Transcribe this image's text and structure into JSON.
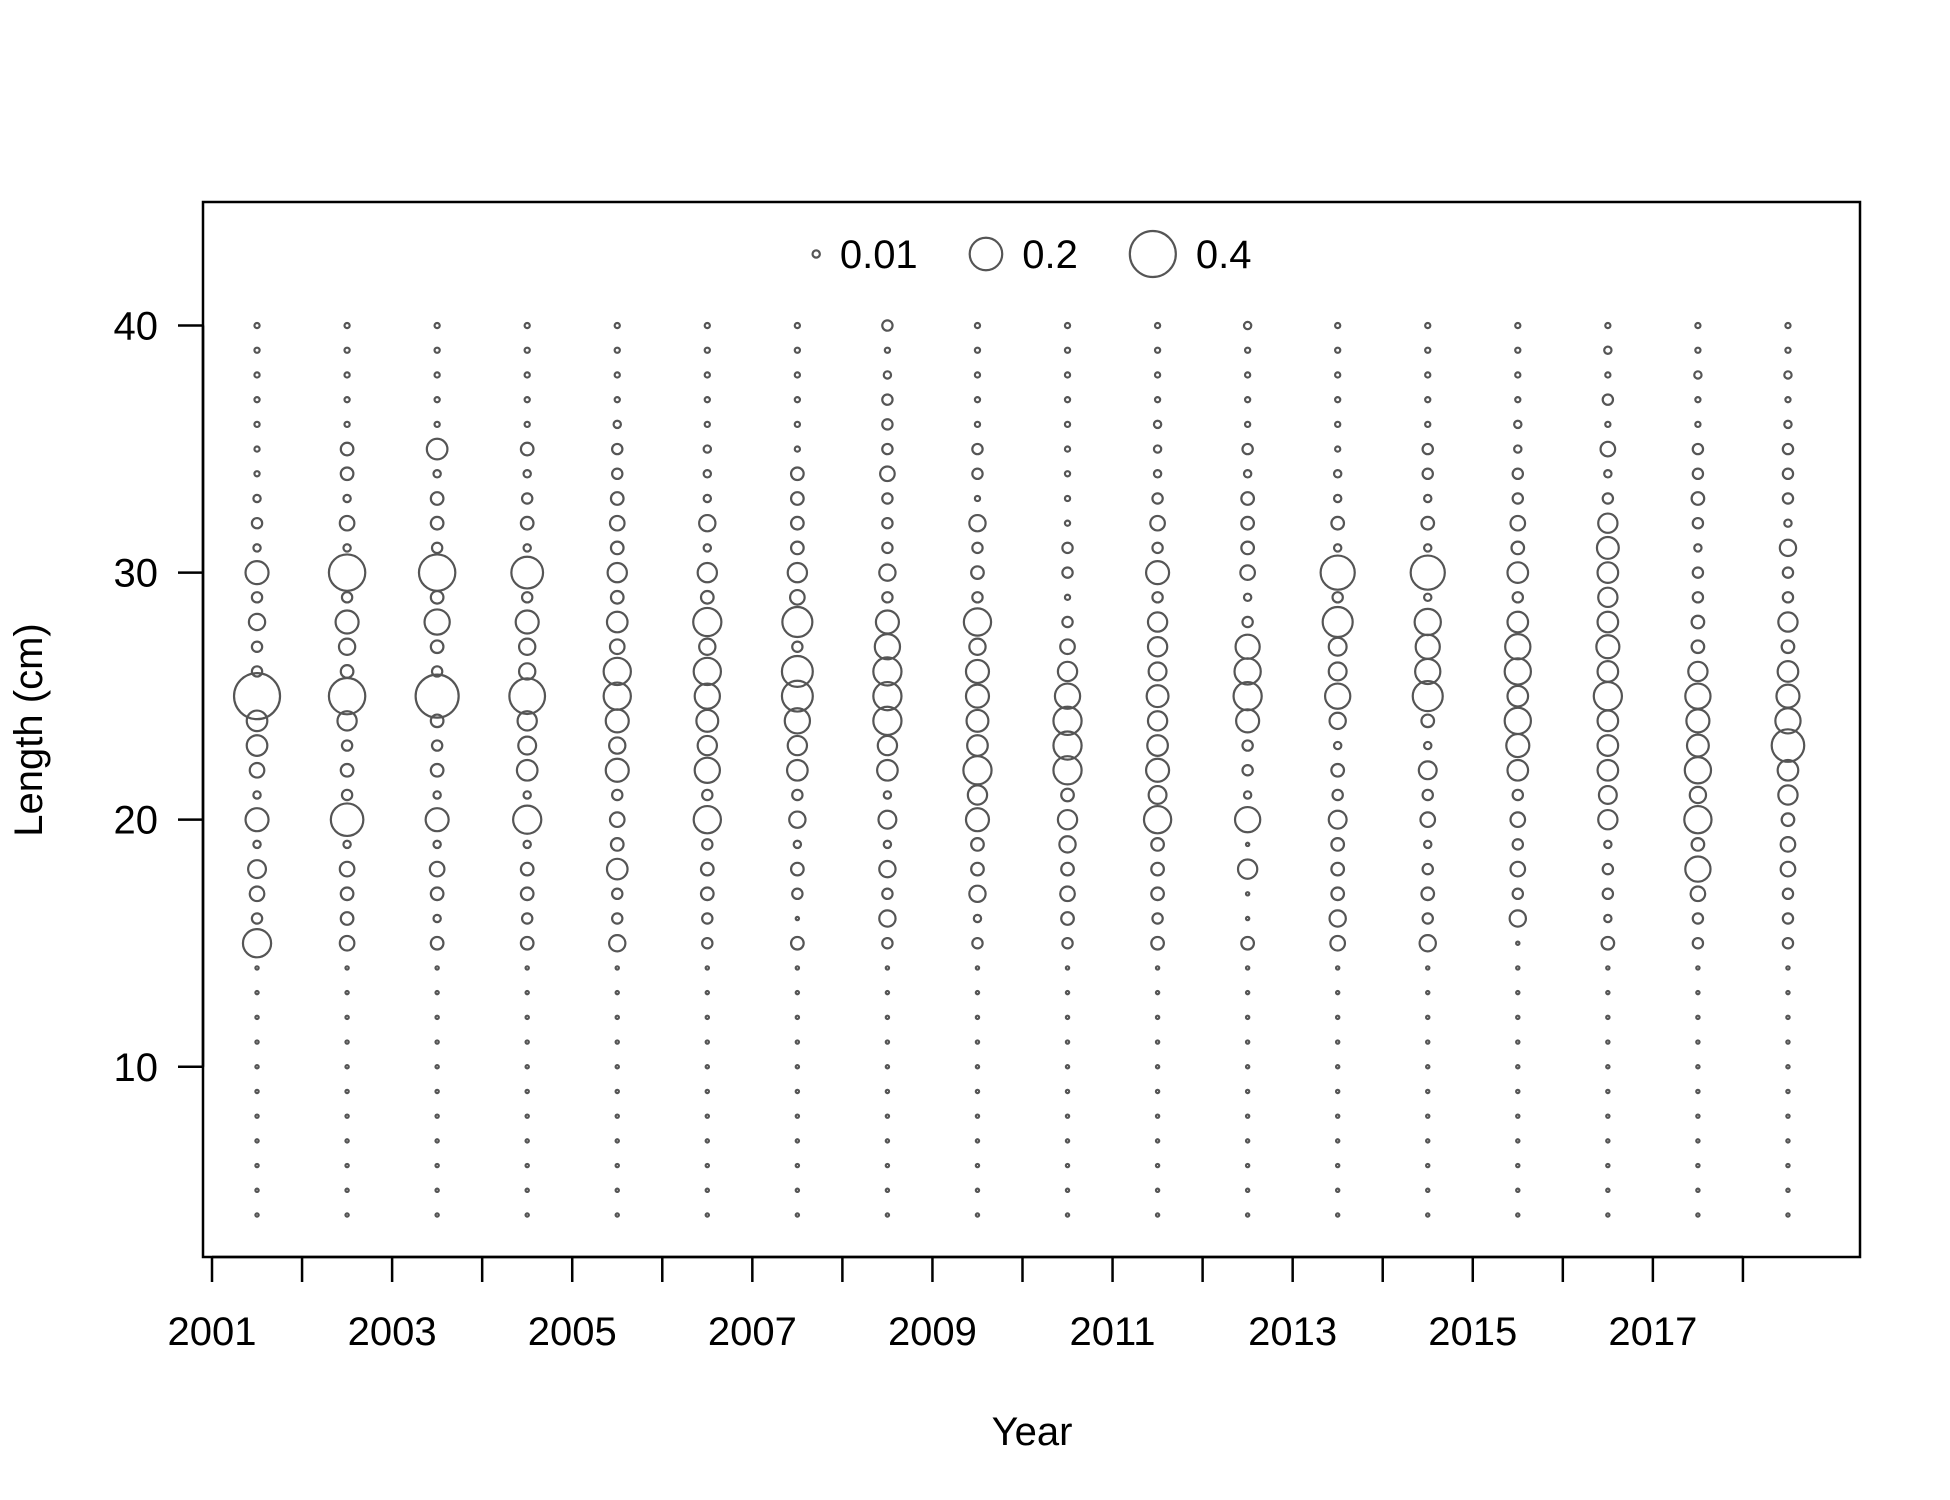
{
  "chart_data": {
    "type": "scatter",
    "subtype": "bubble",
    "title": "",
    "xlabel": "Year",
    "ylabel": "Length (cm)",
    "xlim": [
      2000.9,
      2019.3
    ],
    "ylim": [
      2.3,
      45
    ],
    "grid": false,
    "x_tick_values": [
      2001,
      2002,
      2003,
      2004,
      2005,
      2006,
      2007,
      2008,
      2009,
      2010,
      2011,
      2012,
      2013,
      2014,
      2015,
      2016,
      2017,
      2018
    ],
    "x_tick_labels": [
      "2001",
      "2003",
      "2005",
      "2007",
      "2009",
      "2011",
      "2013",
      "2015",
      "2017"
    ],
    "x_tick_label_values": [
      2001,
      2003,
      2005,
      2007,
      2009,
      2011,
      2013,
      2015,
      2017
    ],
    "y_tick_values": [
      10,
      20,
      30,
      40
    ],
    "y_tick_labels": [
      "10",
      "20",
      "30",
      "40"
    ],
    "legend": {
      "position": "top-center",
      "entries": [
        {
          "label": "0.01",
          "value": 0.01
        },
        {
          "label": "0.2",
          "value": 0.2
        },
        {
          "label": "0.4",
          "value": 0.4
        }
      ]
    },
    "point_color": "#555555",
    "length_bins": [
      4,
      5,
      6,
      7,
      8,
      9,
      10,
      11,
      12,
      13,
      14,
      15,
      16,
      17,
      18,
      19,
      20,
      21,
      22,
      23,
      24,
      25,
      26,
      27,
      28,
      29,
      30,
      31,
      32,
      33,
      34,
      35,
      36,
      37,
      38,
      39,
      40
    ],
    "series": [
      {
        "x": 2001.5,
        "values": [
          0.002,
          0.002,
          0.002,
          0.002,
          0.002,
          0.002,
          0.002,
          0.002,
          0.002,
          0.002,
          0.002,
          0.15,
          0.02,
          0.04,
          0.06,
          0.01,
          0.1,
          0.01,
          0.04,
          0.08,
          0.08,
          0.4,
          0.02,
          0.02,
          0.05,
          0.02,
          0.1,
          0.01,
          0.02,
          0.01,
          0.005,
          0.005,
          0.005,
          0.005,
          0.005,
          0.005,
          0.005
        ]
      },
      {
        "x": 2002.5,
        "values": [
          0.002,
          0.002,
          0.002,
          0.002,
          0.002,
          0.002,
          0.002,
          0.002,
          0.002,
          0.002,
          0.002,
          0.04,
          0.03,
          0.03,
          0.04,
          0.01,
          0.2,
          0.02,
          0.03,
          0.02,
          0.07,
          0.25,
          0.03,
          0.05,
          0.1,
          0.02,
          0.25,
          0.01,
          0.04,
          0.01,
          0.03,
          0.03,
          0.005,
          0.005,
          0.005,
          0.005,
          0.005
        ]
      },
      {
        "x": 2003.5,
        "values": [
          0.002,
          0.002,
          0.002,
          0.002,
          0.002,
          0.002,
          0.002,
          0.002,
          0.002,
          0.002,
          0.002,
          0.03,
          0.01,
          0.03,
          0.04,
          0.01,
          0.1,
          0.01,
          0.03,
          0.02,
          0.03,
          0.35,
          0.02,
          0.03,
          0.12,
          0.03,
          0.25,
          0.02,
          0.03,
          0.03,
          0.01,
          0.08,
          0.005,
          0.005,
          0.005,
          0.005,
          0.005
        ]
      },
      {
        "x": 2004.5,
        "values": [
          0.002,
          0.002,
          0.002,
          0.002,
          0.002,
          0.002,
          0.002,
          0.002,
          0.002,
          0.002,
          0.002,
          0.03,
          0.02,
          0.03,
          0.03,
          0.01,
          0.15,
          0.01,
          0.08,
          0.06,
          0.07,
          0.24,
          0.05,
          0.05,
          0.1,
          0.02,
          0.19,
          0.01,
          0.03,
          0.02,
          0.01,
          0.03,
          0.005,
          0.005,
          0.005,
          0.005,
          0.005
        ]
      },
      {
        "x": 2005.5,
        "values": [
          0.002,
          0.002,
          0.002,
          0.002,
          0.002,
          0.002,
          0.002,
          0.002,
          0.002,
          0.002,
          0.002,
          0.05,
          0.02,
          0.02,
          0.08,
          0.03,
          0.04,
          0.02,
          0.1,
          0.05,
          0.1,
          0.14,
          0.14,
          0.04,
          0.08,
          0.03,
          0.07,
          0.03,
          0.04,
          0.03,
          0.02,
          0.02,
          0.01,
          0.005,
          0.005,
          0.005,
          0.005
        ]
      },
      {
        "x": 2006.5,
        "values": [
          0.002,
          0.002,
          0.002,
          0.002,
          0.002,
          0.002,
          0.002,
          0.002,
          0.002,
          0.002,
          0.002,
          0.02,
          0.02,
          0.03,
          0.03,
          0.02,
          0.14,
          0.02,
          0.12,
          0.07,
          0.09,
          0.12,
          0.14,
          0.05,
          0.15,
          0.03,
          0.07,
          0.01,
          0.05,
          0.01,
          0.01,
          0.01,
          0.005,
          0.005,
          0.005,
          0.005,
          0.005
        ]
      },
      {
        "x": 2007.5,
        "values": [
          0.002,
          0.002,
          0.002,
          0.002,
          0.002,
          0.002,
          0.002,
          0.002,
          0.002,
          0.002,
          0.002,
          0.03,
          0.002,
          0.02,
          0.03,
          0.01,
          0.05,
          0.02,
          0.08,
          0.07,
          0.12,
          0.18,
          0.18,
          0.02,
          0.17,
          0.04,
          0.07,
          0.03,
          0.03,
          0.03,
          0.03,
          0.005,
          0.005,
          0.005,
          0.005,
          0.005,
          0.005
        ]
      },
      {
        "x": 2008.5,
        "values": [
          0.002,
          0.002,
          0.002,
          0.002,
          0.002,
          0.002,
          0.002,
          0.002,
          0.002,
          0.002,
          0.002,
          0.02,
          0.05,
          0.02,
          0.05,
          0.01,
          0.06,
          0.01,
          0.08,
          0.07,
          0.15,
          0.15,
          0.15,
          0.12,
          0.1,
          0.02,
          0.05,
          0.02,
          0.02,
          0.02,
          0.04,
          0.02,
          0.02,
          0.02,
          0.01,
          0.005,
          0.02
        ]
      },
      {
        "x": 2009.5,
        "values": [
          0.002,
          0.002,
          0.002,
          0.002,
          0.002,
          0.002,
          0.002,
          0.002,
          0.002,
          0.002,
          0.002,
          0.02,
          0.01,
          0.05,
          0.03,
          0.03,
          0.1,
          0.07,
          0.15,
          0.08,
          0.09,
          0.1,
          0.1,
          0.05,
          0.14,
          0.02,
          0.03,
          0.02,
          0.05,
          0.005,
          0.02,
          0.02,
          0.005,
          0.005,
          0.005,
          0.005,
          0.005
        ]
      },
      {
        "x": 2010.5,
        "values": [
          0.002,
          0.002,
          0.002,
          0.002,
          0.002,
          0.002,
          0.002,
          0.002,
          0.002,
          0.002,
          0.002,
          0.02,
          0.03,
          0.04,
          0.03,
          0.05,
          0.07,
          0.03,
          0.15,
          0.15,
          0.15,
          0.12,
          0.07,
          0.04,
          0.02,
          0.005,
          0.02,
          0.02,
          0.005,
          0.005,
          0.005,
          0.005,
          0.005,
          0.005,
          0.005,
          0.005,
          0.005
        ]
      },
      {
        "x": 2011.5,
        "values": [
          0.002,
          0.002,
          0.002,
          0.002,
          0.002,
          0.002,
          0.002,
          0.002,
          0.002,
          0.002,
          0.002,
          0.03,
          0.02,
          0.03,
          0.03,
          0.03,
          0.14,
          0.06,
          0.1,
          0.08,
          0.07,
          0.09,
          0.06,
          0.07,
          0.07,
          0.02,
          0.1,
          0.02,
          0.04,
          0.02,
          0.01,
          0.01,
          0.01,
          0.005,
          0.005,
          0.005,
          0.005
        ]
      },
      {
        "x": 2012.5,
        "values": [
          0.002,
          0.002,
          0.002,
          0.002,
          0.002,
          0.002,
          0.002,
          0.002,
          0.002,
          0.002,
          0.002,
          0.03,
          0.002,
          0.002,
          0.07,
          0.002,
          0.12,
          0.01,
          0.02,
          0.02,
          0.1,
          0.15,
          0.13,
          0.11,
          0.02,
          0.01,
          0.04,
          0.03,
          0.03,
          0.03,
          0.01,
          0.02,
          0.005,
          0.005,
          0.005,
          0.005,
          0.01
        ]
      },
      {
        "x": 2013.5,
        "values": [
          0.002,
          0.002,
          0.002,
          0.002,
          0.002,
          0.002,
          0.002,
          0.002,
          0.002,
          0.002,
          0.002,
          0.04,
          0.05,
          0.03,
          0.03,
          0.03,
          0.06,
          0.02,
          0.03,
          0.01,
          0.05,
          0.12,
          0.06,
          0.06,
          0.17,
          0.02,
          0.22,
          0.01,
          0.03,
          0.01,
          0.01,
          0.005,
          0.005,
          0.005,
          0.005,
          0.005,
          0.005
        ]
      },
      {
        "x": 2014.5,
        "values": [
          0.002,
          0.002,
          0.002,
          0.002,
          0.002,
          0.002,
          0.002,
          0.002,
          0.002,
          0.002,
          0.002,
          0.05,
          0.02,
          0.03,
          0.02,
          0.01,
          0.04,
          0.02,
          0.06,
          0.01,
          0.03,
          0.17,
          0.12,
          0.11,
          0.13,
          0.01,
          0.22,
          0.01,
          0.03,
          0.01,
          0.02,
          0.02,
          0.005,
          0.005,
          0.005,
          0.005,
          0.005
        ]
      },
      {
        "x": 2015.5,
        "values": [
          0.002,
          0.002,
          0.002,
          0.002,
          0.002,
          0.002,
          0.002,
          0.002,
          0.002,
          0.002,
          0.002,
          0.002,
          0.05,
          0.02,
          0.04,
          0.02,
          0.04,
          0.02,
          0.08,
          0.1,
          0.13,
          0.08,
          0.13,
          0.12,
          0.08,
          0.02,
          0.08,
          0.03,
          0.04,
          0.02,
          0.02,
          0.01,
          0.01,
          0.005,
          0.005,
          0.005,
          0.005
        ]
      },
      {
        "x": 2016.5,
        "values": [
          0.002,
          0.002,
          0.002,
          0.002,
          0.002,
          0.002,
          0.002,
          0.002,
          0.002,
          0.002,
          0.002,
          0.03,
          0.01,
          0.02,
          0.02,
          0.01,
          0.07,
          0.06,
          0.08,
          0.08,
          0.08,
          0.15,
          0.08,
          0.1,
          0.08,
          0.07,
          0.08,
          0.09,
          0.07,
          0.02,
          0.01,
          0.04,
          0.005,
          0.02,
          0.005,
          0.01,
          0.005
        ]
      },
      {
        "x": 2017.5,
        "values": [
          0.002,
          0.002,
          0.002,
          0.002,
          0.002,
          0.002,
          0.002,
          0.002,
          0.002,
          0.002,
          0.002,
          0.02,
          0.02,
          0.04,
          0.12,
          0.03,
          0.14,
          0.05,
          0.13,
          0.09,
          0.1,
          0.12,
          0.07,
          0.03,
          0.03,
          0.02,
          0.02,
          0.01,
          0.02,
          0.03,
          0.02,
          0.02,
          0.005,
          0.005,
          0.01,
          0.005,
          0.005
        ]
      },
      {
        "x": 2018.5,
        "values": [
          0.002,
          0.002,
          0.002,
          0.002,
          0.002,
          0.002,
          0.002,
          0.002,
          0.002,
          0.002,
          0.002,
          0.02,
          0.02,
          0.02,
          0.04,
          0.04,
          0.03,
          0.07,
          0.08,
          0.2,
          0.12,
          0.1,
          0.08,
          0.03,
          0.07,
          0.02,
          0.02,
          0.05,
          0.01,
          0.02,
          0.02,
          0.02,
          0.01,
          0.005,
          0.01,
          0.005,
          0.005
        ]
      }
    ]
  }
}
